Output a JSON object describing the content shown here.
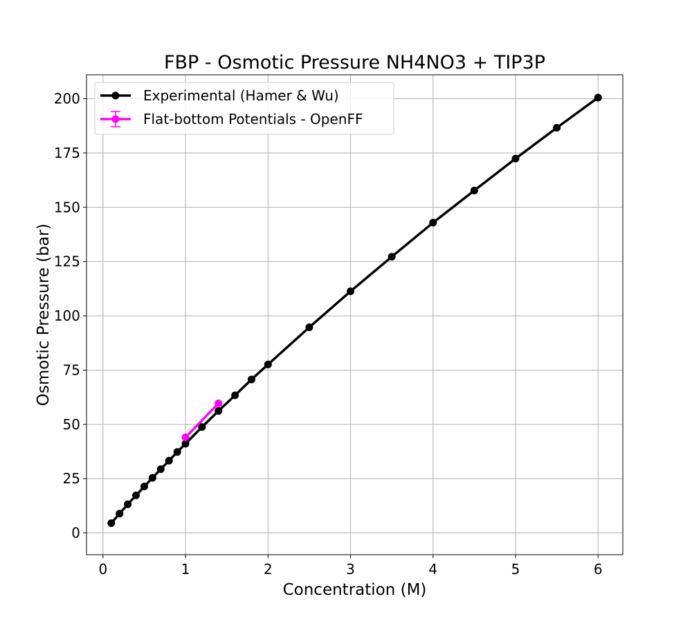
{
  "chart_data": {
    "type": "line",
    "title": "FBP - Osmotic Pressure NH4NO3 + TIP3P",
    "xlabel": "Concentration (M)",
    "ylabel": "Osmotic Pressure (bar)",
    "xlim": [
      -0.2,
      6.3
    ],
    "ylim": [
      -10,
      211
    ],
    "xticks": [
      0,
      1,
      2,
      3,
      4,
      5,
      6
    ],
    "yticks": [
      0,
      25,
      50,
      75,
      100,
      125,
      150,
      175,
      200
    ],
    "grid": true,
    "legend_position": "upper-left",
    "series": [
      {
        "name": "Experimental (Hamer & Wu)",
        "color": "#000000",
        "marker": "circle",
        "x": [
          0.1,
          0.2,
          0.3,
          0.4,
          0.5,
          0.6,
          0.7,
          0.8,
          0.9,
          1.0,
          1.2,
          1.4,
          1.6,
          1.8,
          2.0,
          2.5,
          3.0,
          3.5,
          4.0,
          4.5,
          5.0,
          5.5,
          6.0
        ],
        "y": [
          4.5,
          8.9,
          13.2,
          17.3,
          21.4,
          25.4,
          29.4,
          33.3,
          37.3,
          41.1,
          48.8,
          56.2,
          63.4,
          70.7,
          77.6,
          94.7,
          111.3,
          127.2,
          142.9,
          157.7,
          172.4,
          186.6,
          200.5
        ]
      },
      {
        "name": "Flat-bottom Potentials - OpenFF",
        "color": "#ff00ff",
        "marker": "circle",
        "x": [
          1.0,
          1.4
        ],
        "y": [
          44.0,
          59.7
        ],
        "xerr": [
          0.04,
          0.04
        ],
        "yerr": [
          0.8,
          0.8
        ]
      }
    ]
  }
}
